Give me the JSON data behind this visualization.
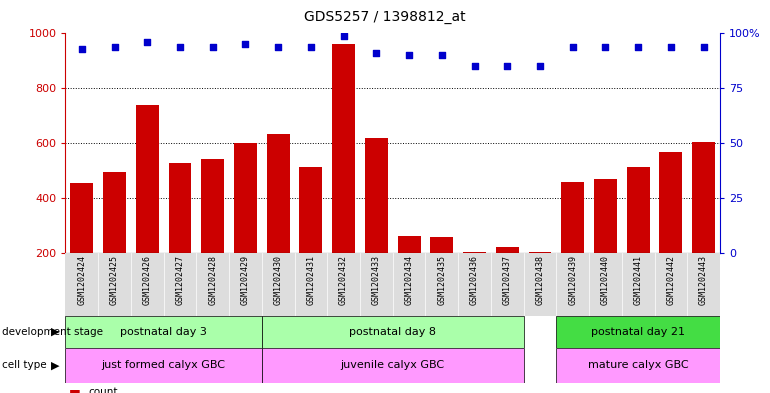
{
  "title": "GDS5257 / 1398812_at",
  "samples": [
    "GSM1202424",
    "GSM1202425",
    "GSM1202426",
    "GSM1202427",
    "GSM1202428",
    "GSM1202429",
    "GSM1202430",
    "GSM1202431",
    "GSM1202432",
    "GSM1202433",
    "GSM1202434",
    "GSM1202435",
    "GSM1202436",
    "GSM1202437",
    "GSM1202438",
    "GSM1202439",
    "GSM1202440",
    "GSM1202441",
    "GSM1202442",
    "GSM1202443"
  ],
  "counts": [
    455,
    495,
    740,
    530,
    545,
    600,
    635,
    515,
    960,
    620,
    265,
    260,
    205,
    225,
    205,
    460,
    470,
    515,
    570,
    605
  ],
  "percentiles": [
    93,
    94,
    96,
    94,
    94,
    95,
    94,
    94,
    99,
    91,
    90,
    90,
    85,
    85,
    85,
    94,
    94,
    94,
    94,
    94
  ],
  "bar_color": "#cc0000",
  "dot_color": "#0000cc",
  "ylim_left": [
    200,
    1000
  ],
  "ylim_right": [
    0,
    100
  ],
  "yticks_left": [
    200,
    400,
    600,
    800,
    1000
  ],
  "yticks_right": [
    0,
    25,
    50,
    75,
    100
  ],
  "dev_stage_groups": [
    {
      "label": "postnatal day 3",
      "start": 0,
      "end": 5,
      "color": "#aaffaa"
    },
    {
      "label": "postnatal day 8",
      "start": 6,
      "end": 13,
      "color": "#aaffaa"
    },
    {
      "label": "postnatal day 21",
      "start": 15,
      "end": 19,
      "color": "#44dd44"
    }
  ],
  "cell_type_groups": [
    {
      "label": "just formed calyx GBC",
      "start": 0,
      "end": 5,
      "color": "#ff99ff"
    },
    {
      "label": "juvenile calyx GBC",
      "start": 6,
      "end": 13,
      "color": "#ff99ff"
    },
    {
      "label": "mature calyx GBC",
      "start": 15,
      "end": 19,
      "color": "#ff99ff"
    }
  ],
  "tick_label_color_left": "#cc0000",
  "tick_label_color_right": "#0000cc",
  "legend_count_color": "#cc0000",
  "legend_dot_color": "#0000cc"
}
